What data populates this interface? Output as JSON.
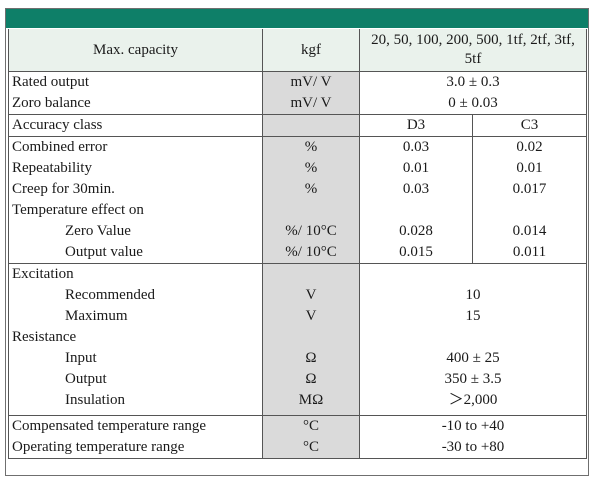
{
  "header": {
    "label": "Max. capacity",
    "unit": "kgf",
    "capacities": "20, 50, 100, 200, 500, 1tf, 2tf, 3tf, 5tf"
  },
  "rows": {
    "rated_output": {
      "label": "Rated output",
      "unit": "mV/ V",
      "value": "3.0 ± 0.3"
    },
    "zero_balance": {
      "label": "Zoro balance",
      "unit": "mV/ V",
      "value": "0 ± 0.03"
    },
    "accuracy_class": {
      "label": "Accuracy class",
      "unit": "",
      "d3": "D3",
      "c3": "C3"
    },
    "combined_error": {
      "label": "Combined error",
      "unit": "%",
      "d3": "0.03",
      "c3": "0.02"
    },
    "repeatability": {
      "label": "Repeatability",
      "unit": "%",
      "d3": "0.01",
      "c3": "0.01"
    },
    "creep": {
      "label": "Creep for 30min.",
      "unit": "%",
      "d3": "0.03",
      "c3": "0.017"
    },
    "temperature_effect": {
      "label": "Temperature effect on"
    },
    "zero_value": {
      "label": "Zero Value",
      "unit": "%/ 10°C",
      "d3": "0.028",
      "c3": "0.014"
    },
    "output_value": {
      "label": "Output value",
      "unit": "%/ 10°C",
      "d3": "0.015",
      "c3": "0.011"
    },
    "excitation": {
      "label": "Excitation"
    },
    "recommended": {
      "label": "Recommended",
      "unit": "V",
      "value": "10"
    },
    "maximum": {
      "label": "Maximum",
      "unit": "V",
      "value": "15"
    },
    "resistance": {
      "label": "Resistance"
    },
    "input": {
      "label": "Input",
      "unit": "Ω",
      "value": "400 ± 25"
    },
    "output": {
      "label": "Output",
      "unit": "Ω",
      "value": "350 ± 3.5"
    },
    "insulation": {
      "label": "Insulation",
      "unit": "MΩ",
      "value": "＞2,000"
    },
    "compensated_temp": {
      "label": "Compensated temperature range",
      "unit": "°C",
      "value": "-10 to +40"
    },
    "operating_temp": {
      "label": "Operating temperature range",
      "unit": "°C",
      "value": "-30 to +80"
    }
  },
  "colors": {
    "header_bar": "#0e7f68",
    "unit_column": "#dadada",
    "header_row": "#eaf2ec"
  }
}
